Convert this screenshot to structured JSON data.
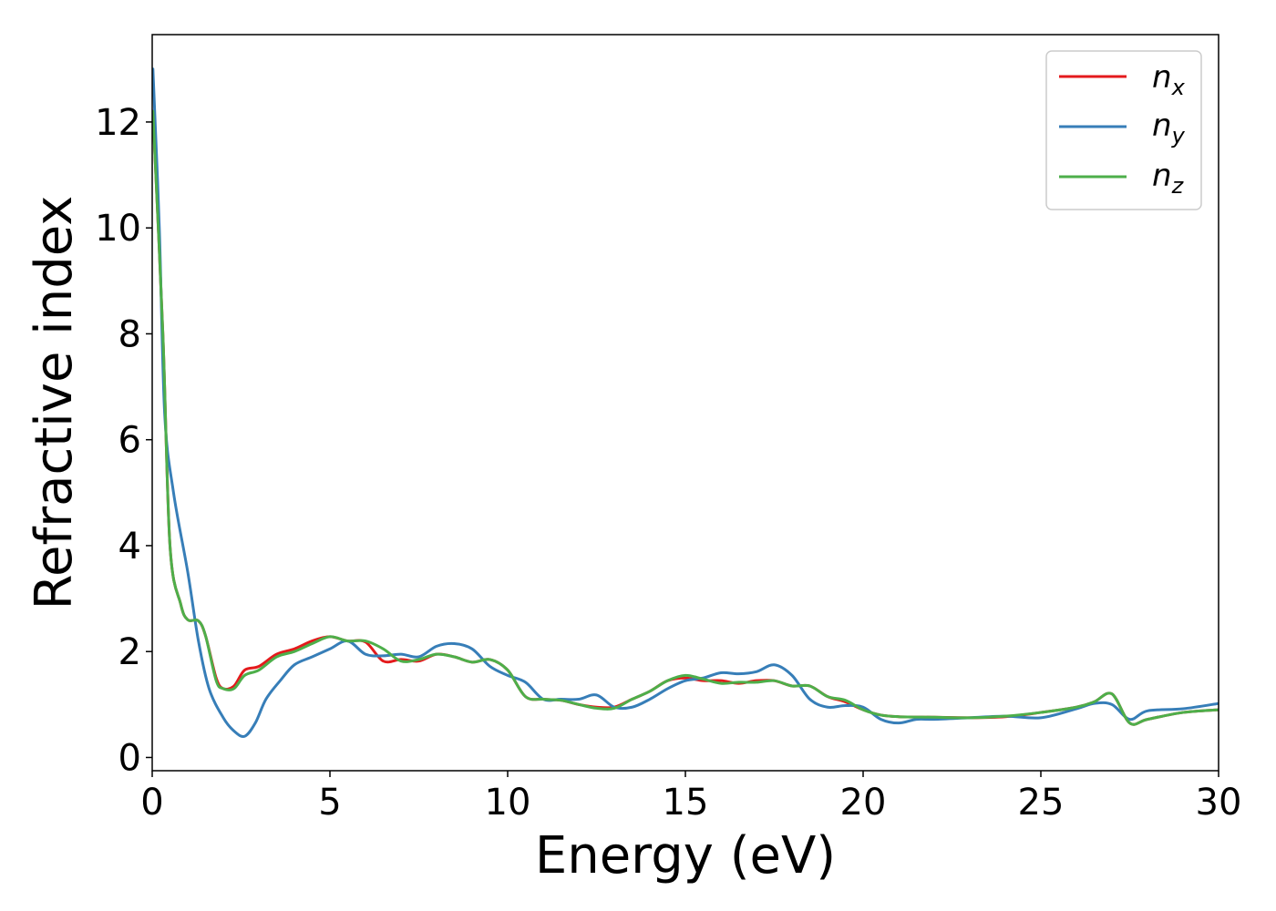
{
  "chart_data": {
    "type": "line",
    "title": "",
    "xlabel": "Energy (eV)",
    "ylabel": "Refractive index",
    "xlim": [
      0,
      30
    ],
    "ylim": [
      -0.25,
      13.65
    ],
    "xticks": [
      0,
      5,
      10,
      15,
      20,
      25,
      30
    ],
    "xtick_labels": [
      "0",
      "5",
      "10",
      "15",
      "20",
      "25",
      "30"
    ],
    "yticks": [
      0,
      2,
      4,
      6,
      8,
      10,
      12
    ],
    "ytick_labels": [
      "0",
      "2",
      "4",
      "6",
      "8",
      "10",
      "12"
    ],
    "grid": false,
    "legend_position": "top-right",
    "colors": {
      "nx": "#e41a1c",
      "ny": "#377eb8",
      "nz": "#4daf4a"
    },
    "series": [
      {
        "name": "n",
        "subscript": "x",
        "color": "#e41a1c",
        "x": [
          0.02,
          0.3,
          0.5,
          0.8,
          1.0,
          1.3,
          1.5,
          1.8,
          2.0,
          2.3,
          2.6,
          3.0,
          3.5,
          4.0,
          4.5,
          5.0,
          5.5,
          6.0,
          6.5,
          7.0,
          7.5,
          8.0,
          8.5,
          9.0,
          9.5,
          10.0,
          10.5,
          11.0,
          11.5,
          12.0,
          12.5,
          13.0,
          13.5,
          14.0,
          14.5,
          15.0,
          15.5,
          16.0,
          16.5,
          17.0,
          17.5,
          18.0,
          18.5,
          19.0,
          19.5,
          20.0,
          20.5,
          21.0,
          22.0,
          23.0,
          24.0,
          25.0,
          26.0,
          26.5,
          27.0,
          27.5,
          28.0,
          29.0,
          30.0
        ],
        "y": [
          12.2,
          8.0,
          4.0,
          2.9,
          2.6,
          2.58,
          2.3,
          1.5,
          1.3,
          1.35,
          1.65,
          1.72,
          1.95,
          2.05,
          2.2,
          2.28,
          2.2,
          2.18,
          1.82,
          1.85,
          1.82,
          1.95,
          1.9,
          1.8,
          1.85,
          1.65,
          1.15,
          1.1,
          1.08,
          1.0,
          0.95,
          0.95,
          1.1,
          1.25,
          1.45,
          1.5,
          1.45,
          1.45,
          1.4,
          1.45,
          1.45,
          1.35,
          1.35,
          1.15,
          1.05,
          0.9,
          0.8,
          0.77,
          0.76,
          0.75,
          0.77,
          0.85,
          0.95,
          1.05,
          1.2,
          0.65,
          0.72,
          0.85,
          0.9
        ]
      },
      {
        "name": "n",
        "subscript": "y",
        "color": "#377eb8",
        "x": [
          0.02,
          0.2,
          0.35,
          0.6,
          1.0,
          1.3,
          1.6,
          2.0,
          2.3,
          2.6,
          2.9,
          3.2,
          3.6,
          4.0,
          4.5,
          5.0,
          5.5,
          6.0,
          6.5,
          7.0,
          7.5,
          8.0,
          8.5,
          9.0,
          9.5,
          10.0,
          10.5,
          11.0,
          11.5,
          12.0,
          12.5,
          13.0,
          13.5,
          14.0,
          14.5,
          15.0,
          15.5,
          16.0,
          16.5,
          17.0,
          17.5,
          18.0,
          18.5,
          19.0,
          19.5,
          20.0,
          20.5,
          21.0,
          21.5,
          22.0,
          23.0,
          24.0,
          25.0,
          26.0,
          26.5,
          27.0,
          27.5,
          28.0,
          29.0,
          30.0
        ],
        "y": [
          13.0,
          10.0,
          6.5,
          5.0,
          3.5,
          2.2,
          1.3,
          0.75,
          0.5,
          0.4,
          0.65,
          1.1,
          1.45,
          1.75,
          1.9,
          2.05,
          2.2,
          1.95,
          1.92,
          1.95,
          1.9,
          2.1,
          2.15,
          2.05,
          1.72,
          1.55,
          1.42,
          1.1,
          1.1,
          1.1,
          1.18,
          0.95,
          0.95,
          1.1,
          1.3,
          1.45,
          1.5,
          1.6,
          1.58,
          1.62,
          1.75,
          1.55,
          1.1,
          0.95,
          0.98,
          0.95,
          0.72,
          0.65,
          0.72,
          0.72,
          0.75,
          0.78,
          0.75,
          0.92,
          1.02,
          1.0,
          0.72,
          0.88,
          0.92,
          1.02
        ]
      },
      {
        "name": "n",
        "subscript": "z",
        "color": "#4daf4a",
        "x": [
          0.02,
          0.3,
          0.5,
          0.8,
          1.0,
          1.3,
          1.5,
          1.8,
          2.0,
          2.3,
          2.6,
          3.0,
          3.5,
          4.0,
          4.5,
          5.0,
          5.5,
          6.0,
          6.5,
          7.0,
          7.5,
          8.0,
          8.5,
          9.0,
          9.5,
          10.0,
          10.5,
          11.0,
          11.5,
          12.0,
          12.5,
          13.0,
          13.5,
          14.0,
          14.5,
          15.0,
          15.5,
          16.0,
          16.5,
          17.0,
          17.5,
          18.0,
          18.5,
          19.0,
          19.5,
          20.0,
          20.5,
          21.0,
          22.0,
          23.0,
          24.0,
          25.0,
          26.0,
          26.5,
          27.0,
          27.5,
          28.0,
          29.0,
          30.0
        ],
        "y": [
          12.2,
          8.0,
          4.0,
          2.9,
          2.6,
          2.58,
          2.3,
          1.45,
          1.3,
          1.3,
          1.55,
          1.65,
          1.9,
          2.0,
          2.15,
          2.28,
          2.2,
          2.2,
          2.05,
          1.82,
          1.85,
          1.95,
          1.9,
          1.8,
          1.85,
          1.65,
          1.15,
          1.1,
          1.08,
          1.0,
          0.93,
          0.93,
          1.1,
          1.25,
          1.45,
          1.55,
          1.48,
          1.4,
          1.42,
          1.42,
          1.45,
          1.35,
          1.35,
          1.15,
          1.08,
          0.9,
          0.8,
          0.77,
          0.76,
          0.75,
          0.78,
          0.85,
          0.95,
          1.05,
          1.2,
          0.65,
          0.72,
          0.85,
          0.9
        ]
      }
    ]
  }
}
